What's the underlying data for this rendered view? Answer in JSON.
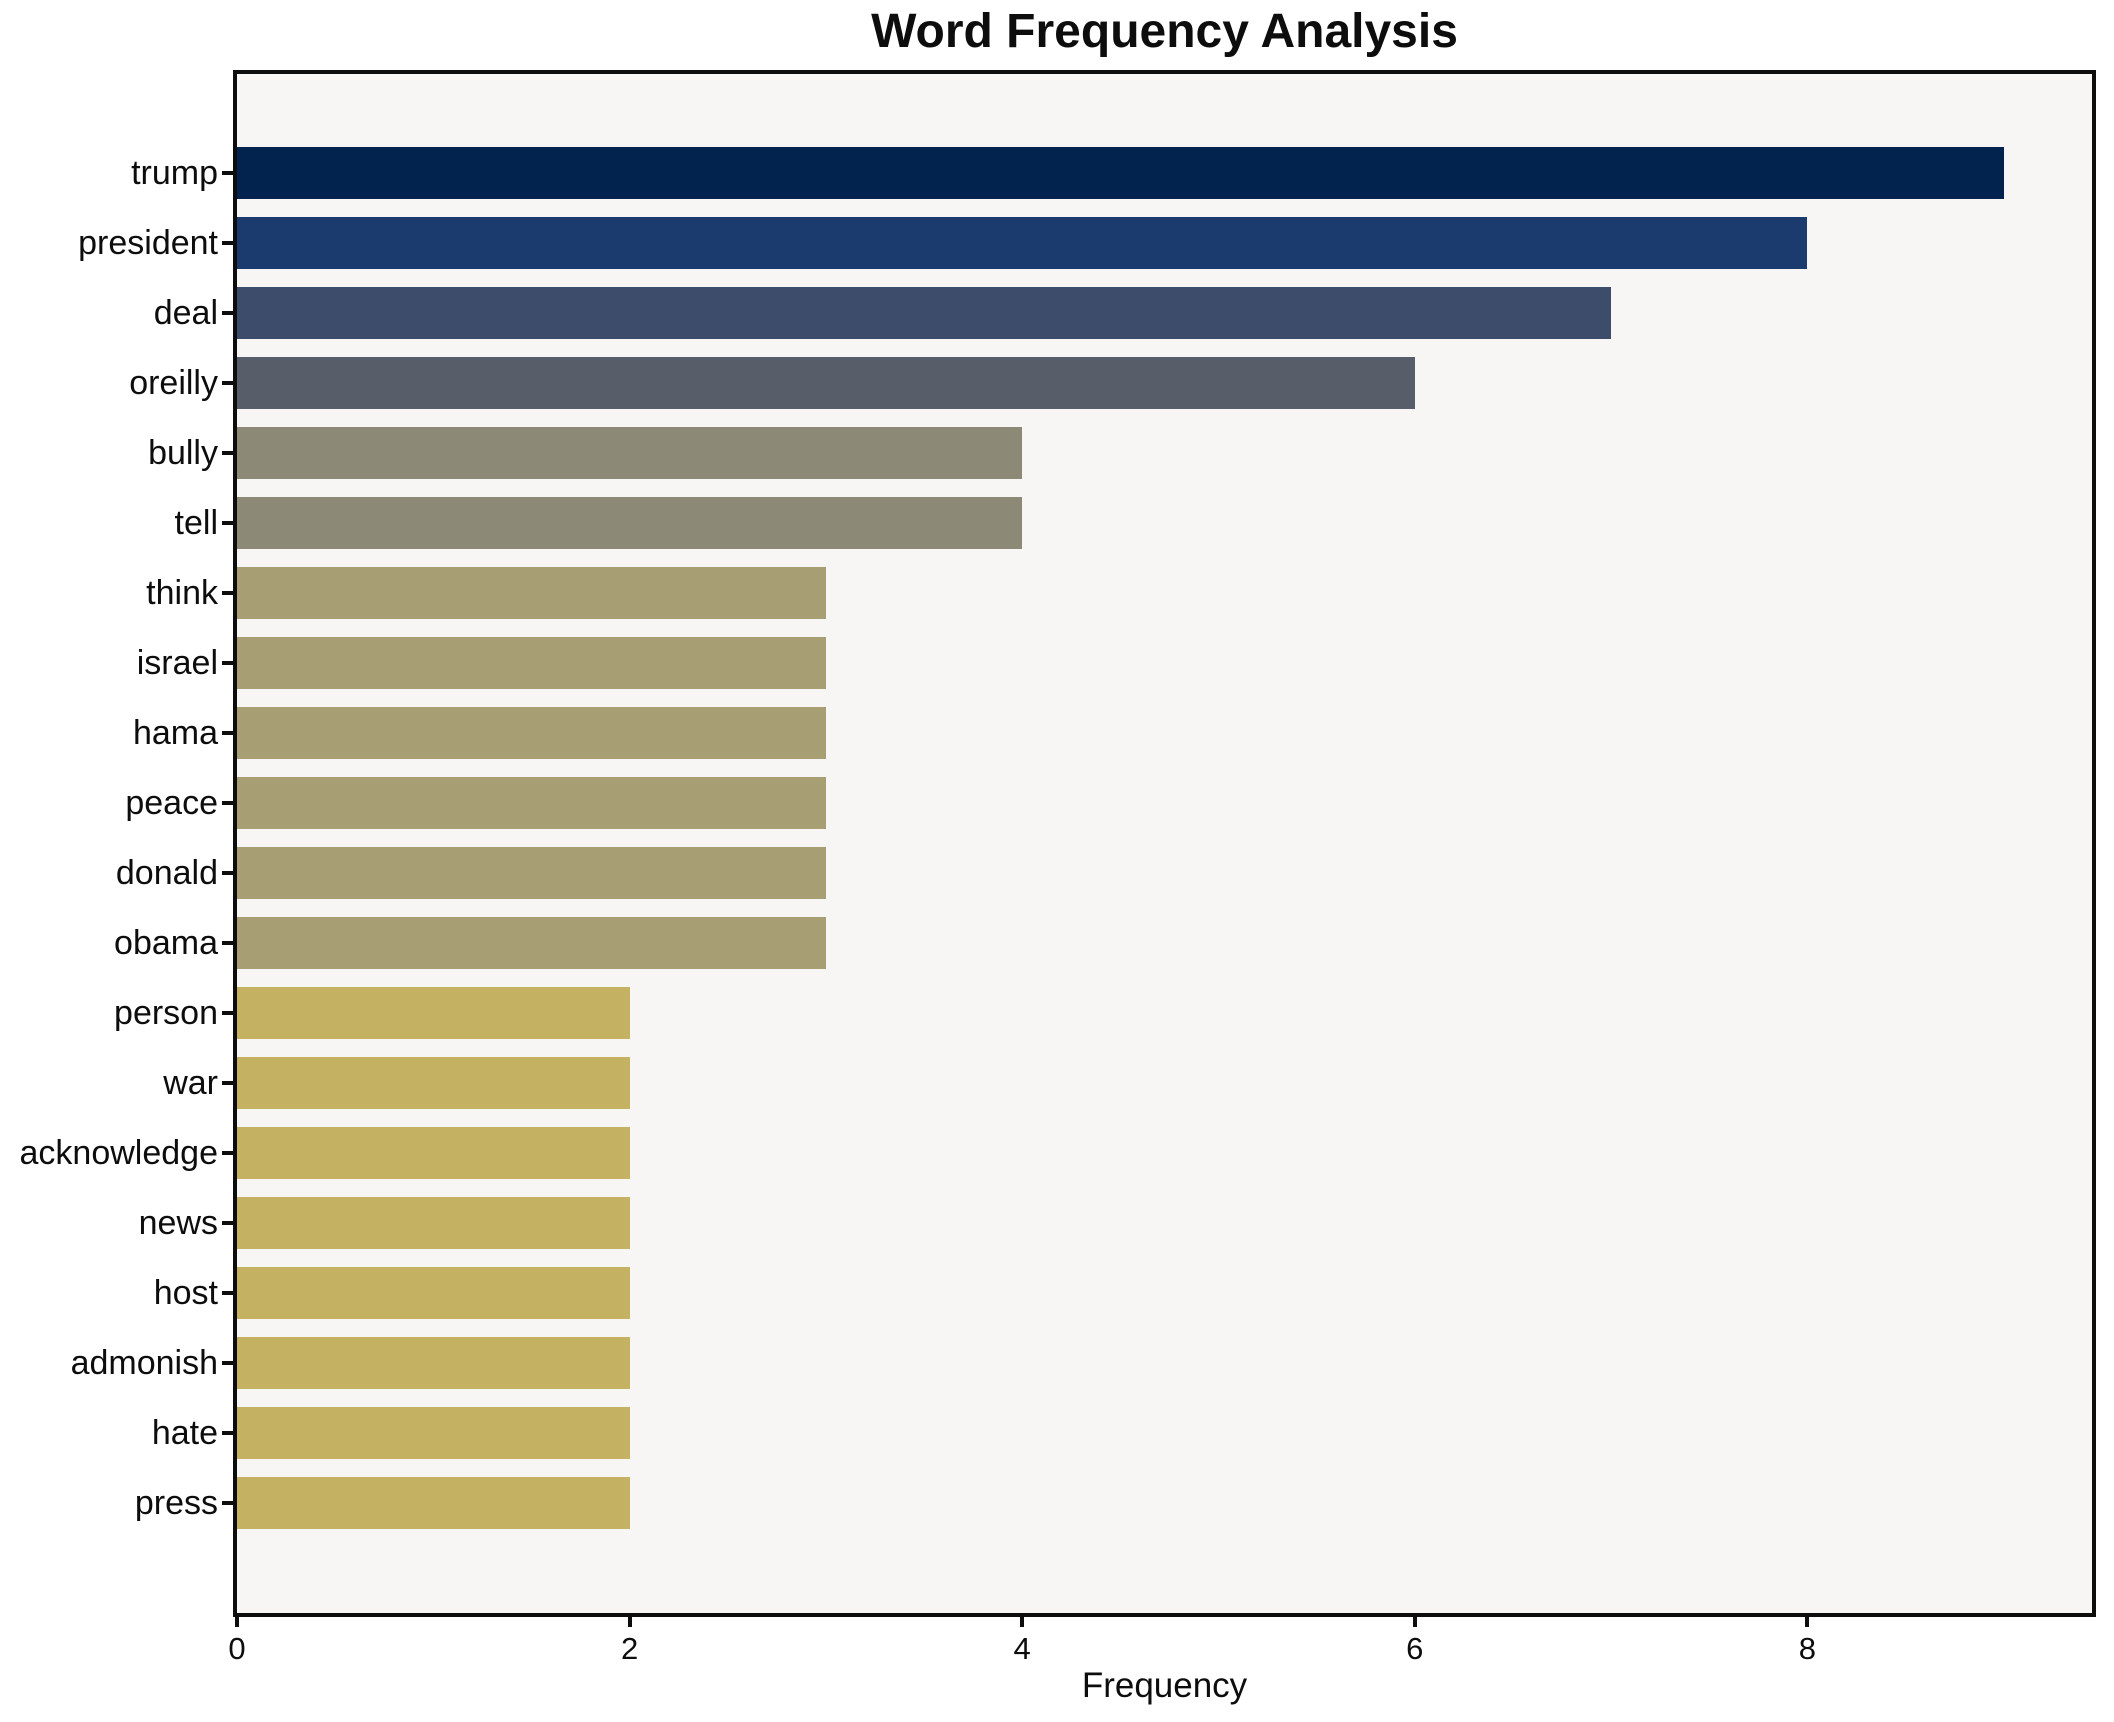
{
  "chart_data": {
    "type": "bar",
    "orientation": "horizontal",
    "title": "Word Frequency Analysis",
    "xlabel": "Frequency",
    "ylabel": "",
    "categories": [
      "trump",
      "president",
      "deal",
      "oreilly",
      "bully",
      "tell",
      "think",
      "israel",
      "hama",
      "peace",
      "donald",
      "obama",
      "person",
      "war",
      "acknowledge",
      "news",
      "host",
      "admonish",
      "hate",
      "press"
    ],
    "values": [
      9,
      8,
      7,
      6,
      4,
      4,
      3,
      3,
      3,
      3,
      3,
      3,
      2,
      2,
      2,
      2,
      2,
      2,
      2,
      2
    ],
    "bar_colors": [
      "#02234e",
      "#1b3a6d",
      "#3e4c6c",
      "#585d6a",
      "#8d8977",
      "#8d8977",
      "#a79e73",
      "#a79e73",
      "#a79e73",
      "#a79e73",
      "#a79e73",
      "#a79e73",
      "#c4b262",
      "#c4b262",
      "#c4b262",
      "#c4b262",
      "#c4b262",
      "#c4b262",
      "#c4b262",
      "#c4b262"
    ],
    "xlim": [
      0,
      9.45
    ],
    "xticks": [
      0,
      2,
      4,
      6,
      8
    ],
    "grid": false,
    "legend_position": "none",
    "plot_background": "#f7f6f4",
    "spine_color": "#0d0d0d",
    "text_color": "#0d0d0d"
  }
}
